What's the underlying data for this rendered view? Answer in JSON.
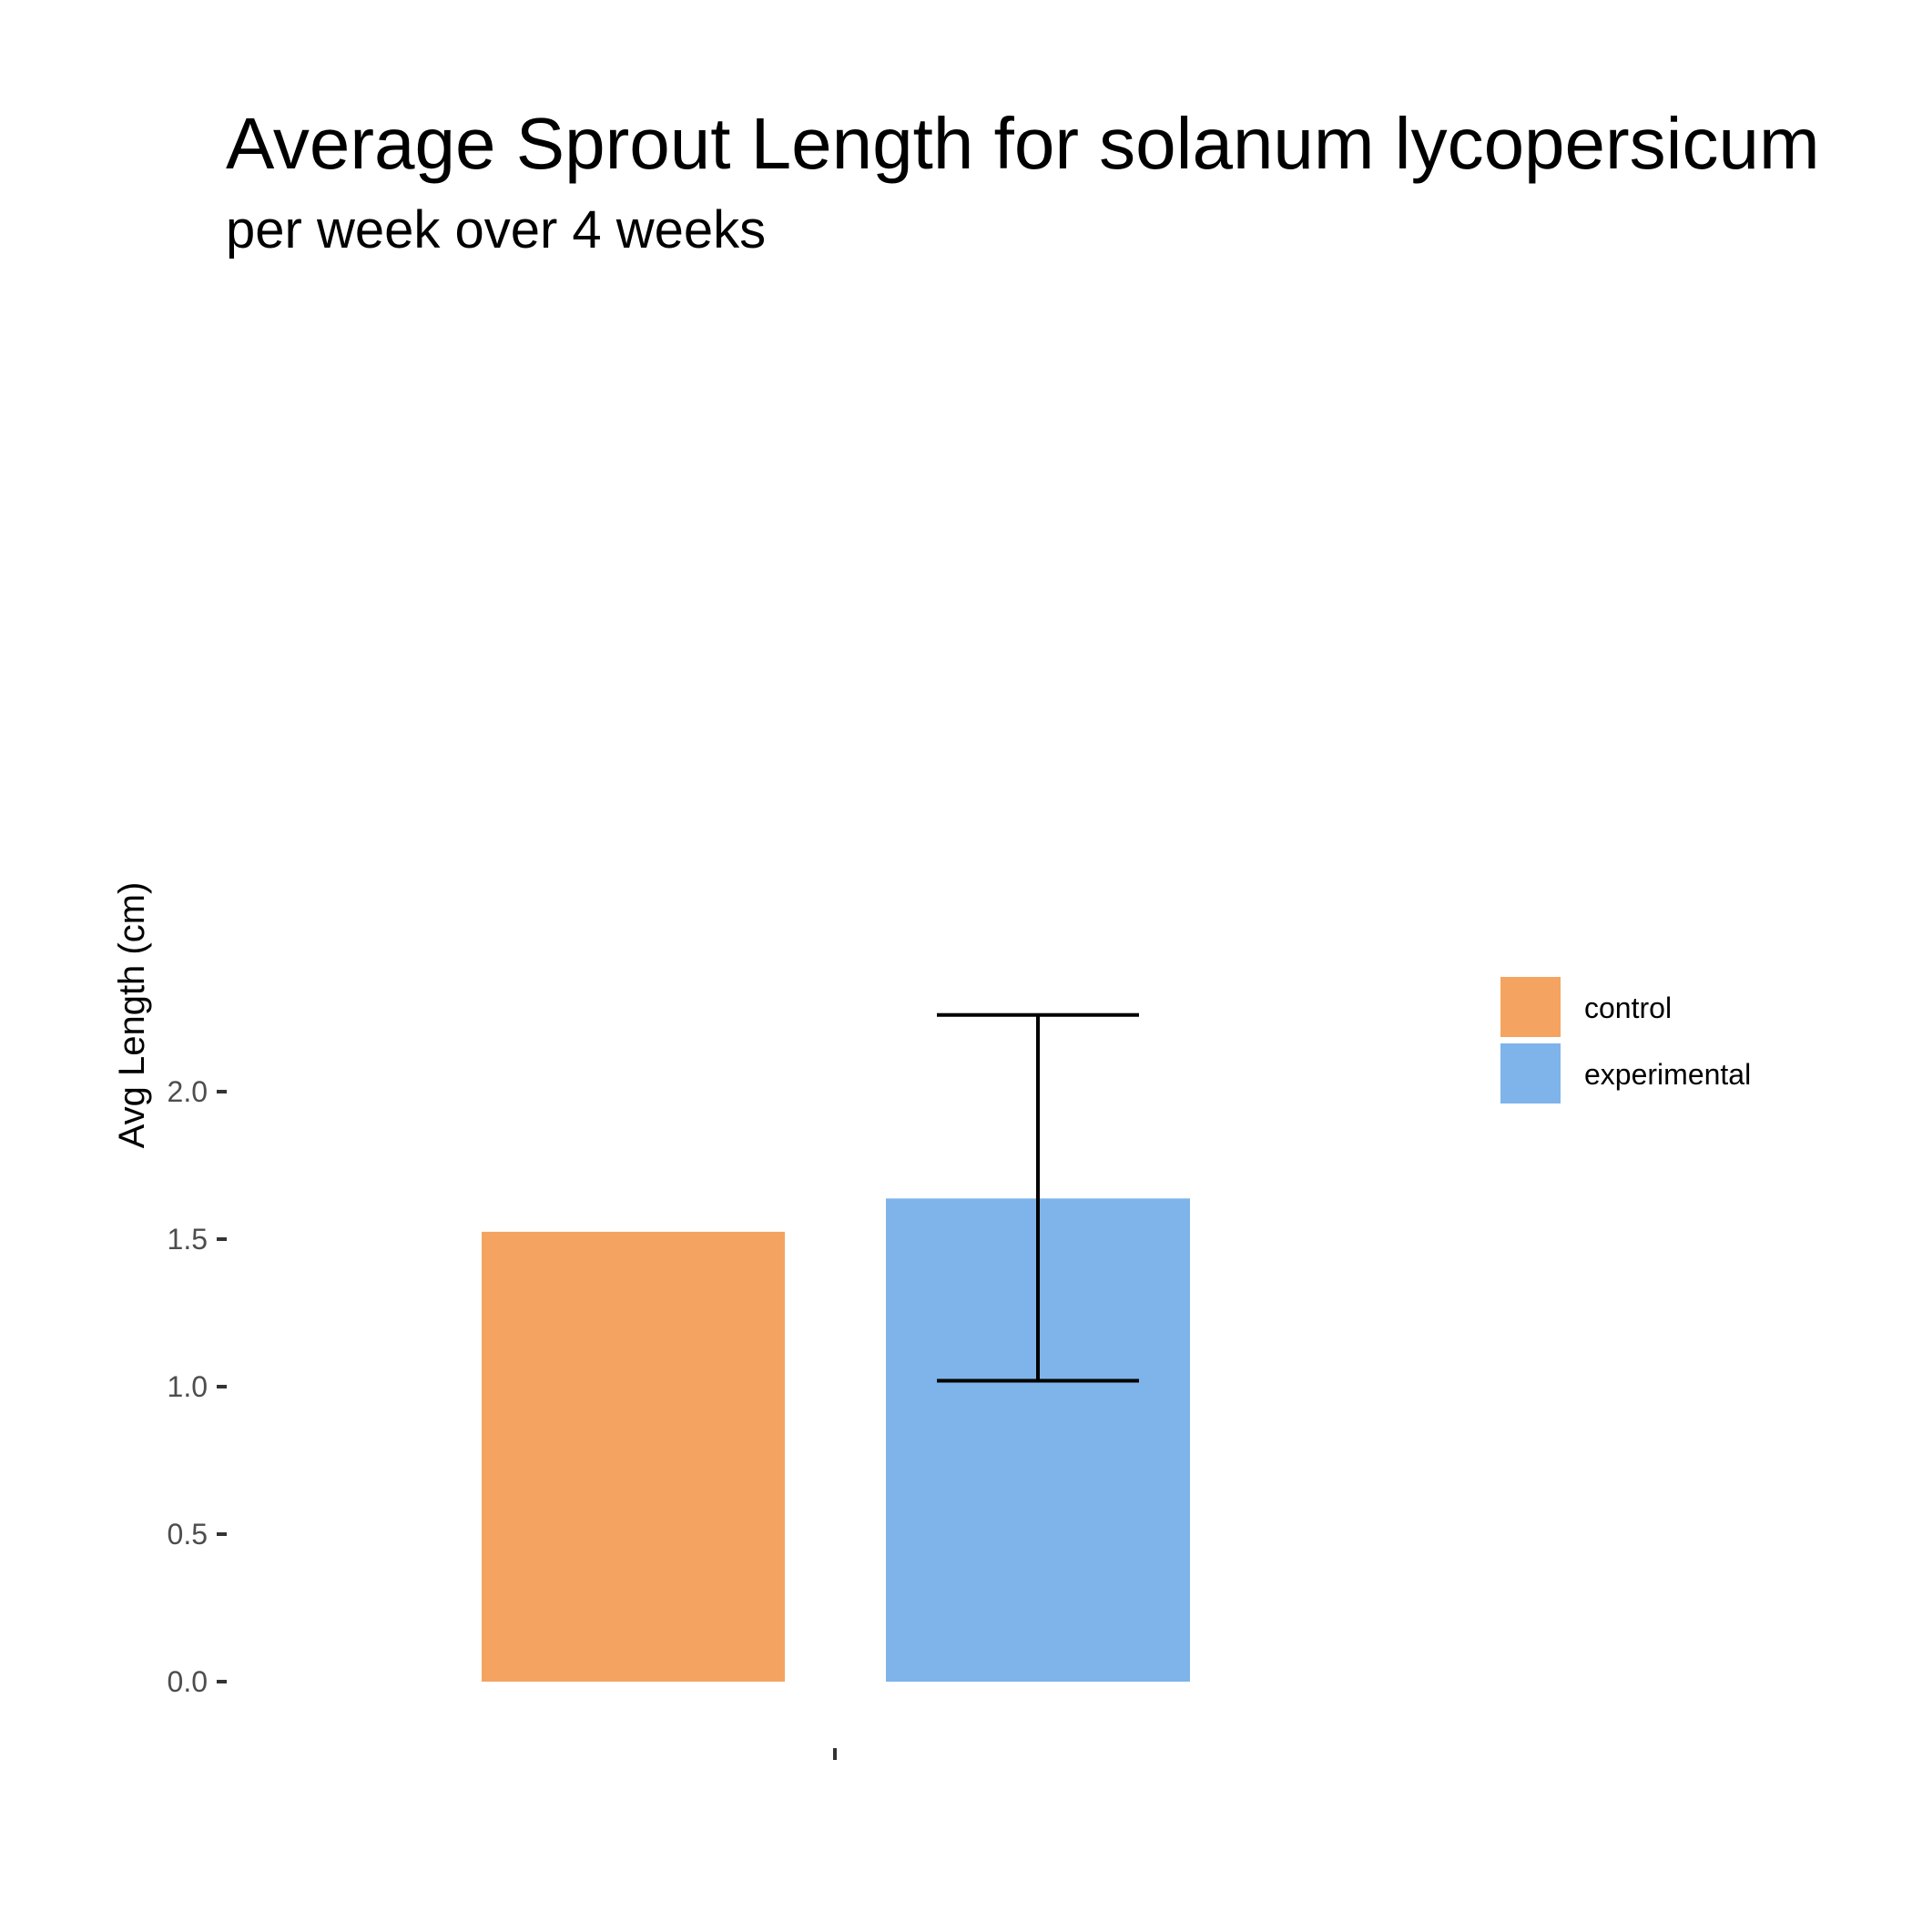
{
  "chart_data": {
    "type": "bar",
    "title": "Average Sprout Length for solanum lycopersicum",
    "subtitle": "per week over 4 weeks",
    "ylabel": "Avg Length (cm)",
    "xlabel": "",
    "ylim": [
      0,
      2.25
    ],
    "yticks": [
      "0.0",
      "0.5",
      "1.0",
      "1.5",
      "2.0"
    ],
    "grid": false,
    "legend_position": "right",
    "series": [
      {
        "name": "control",
        "value": 1.525,
        "color": "#F4A460"
      },
      {
        "name": "experimental",
        "value": 1.638,
        "color": "#7EB4EA",
        "error_low": 1.02,
        "error_high": 2.26
      }
    ]
  }
}
